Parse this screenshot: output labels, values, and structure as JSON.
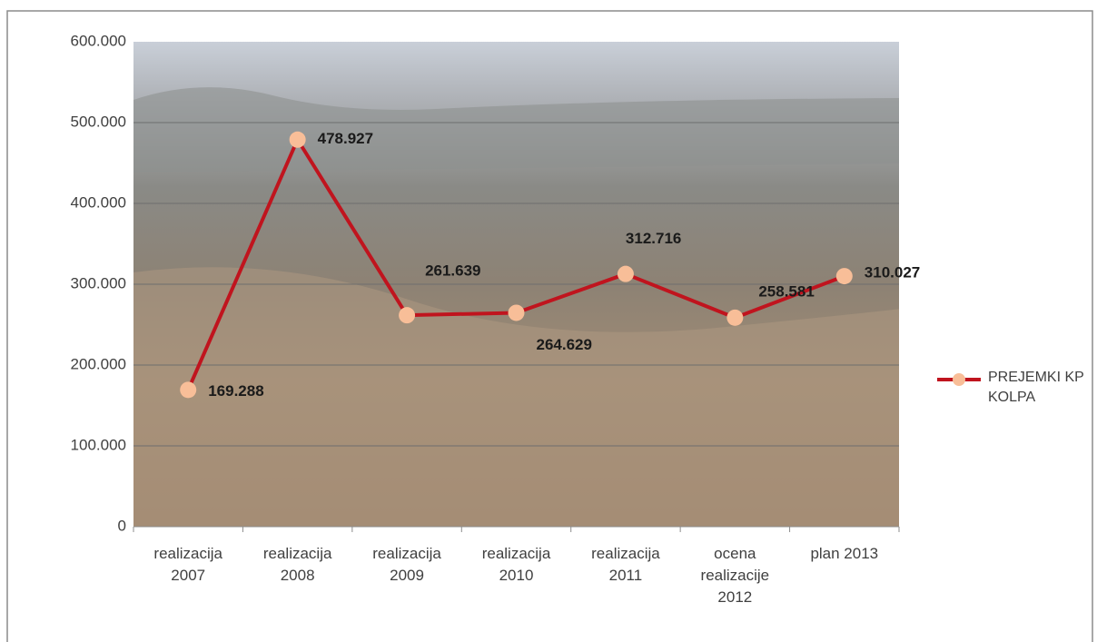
{
  "chart_data": {
    "type": "line",
    "categories": [
      "realizacija 2007",
      "realizacija 2008",
      "realizacija 2009",
      "realizacija 2010",
      "realizacija 2011",
      "ocena realizacije 2012",
      "plan 2013"
    ],
    "series": [
      {
        "name": "PREJEMKI KP KOLPA",
        "color": "#c0141e",
        "marker_color": "#f8be98",
        "values": [
          169288,
          478927,
          261639,
          264629,
          312716,
          258581,
          310027
        ],
        "value_labels": [
          "169.288",
          "478.927",
          "261.639",
          "264.629",
          "312.716",
          "258.581",
          "310.027"
        ]
      }
    ],
    "ylim": [
      0,
      600000
    ],
    "yticks": [
      0,
      {
        "value": 100000,
        "label": "100.000"
      },
      {
        "value": 200000,
        "label": "200.000"
      },
      {
        "value": 300000,
        "label": "300.000"
      },
      {
        "value": 400000,
        "label": "400.000"
      },
      {
        "value": 500000,
        "label": "500.000"
      },
      {
        "value": 600000,
        "label": "600.000"
      }
    ],
    "grid": true,
    "legend": "right"
  }
}
